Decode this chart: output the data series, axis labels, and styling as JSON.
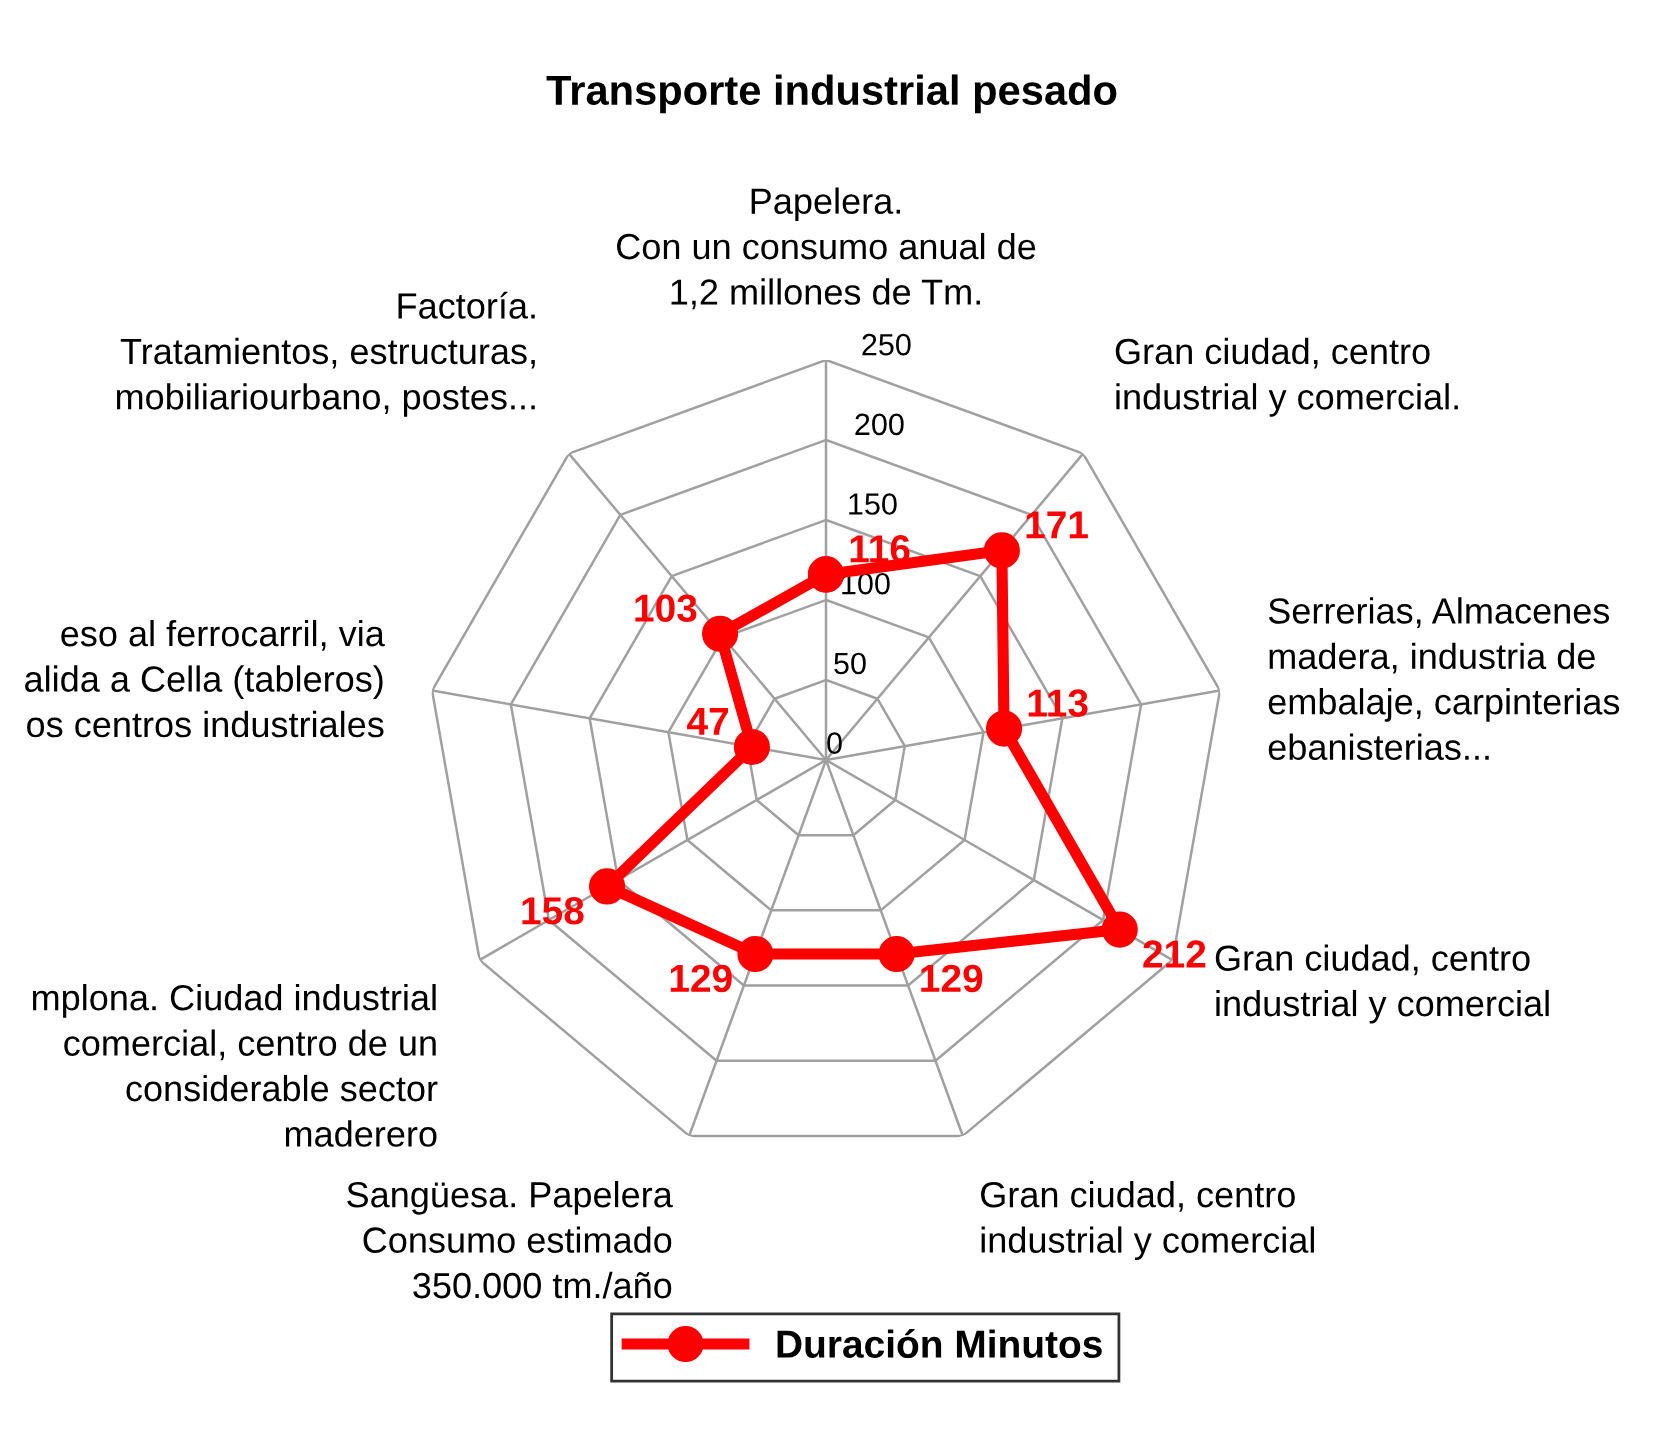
{
  "chart_data": {
    "type": "radar",
    "title": "Transporte industrial pesado",
    "categories": [
      "Papelera.\nCon un consumo anual de\n1,2 millones de Tm.",
      "Gran ciudad, centro\nindustrial y comercial.",
      "Serrerias, Almacenes\nmadera, industria de\nembalaje, carpinterias\nebanisterias...",
      "Gran ciudad, centro\nindustrial y comercial",
      "Gran ciudad, centro\nindustrial y comercial",
      "Sangüesa. Papelera\nConsumo estimado\n350.000 tm./año",
      "mplona. Ciudad industrial\ncomercial, centro de un\nconsiderable sector\nmaderero",
      "eso al ferrocarril, via\nalida a Cella (tableros)\nos centros industriales",
      "Factoría.\nTratamientos, estructuras,\nmobiliariourbano, postes..."
    ],
    "series": [
      {
        "name": "Duración Minutos",
        "color": "#ff0000",
        "values": [
          116,
          171,
          113,
          212,
          129,
          129,
          158,
          47,
          103
        ]
      }
    ],
    "ylim": [
      0,
      250
    ],
    "yticks": [
      0,
      50,
      100,
      150,
      200,
      250
    ],
    "data_labels": true,
    "marker": "circle",
    "line_style": "solid",
    "grid": true,
    "legend": "bottom"
  }
}
